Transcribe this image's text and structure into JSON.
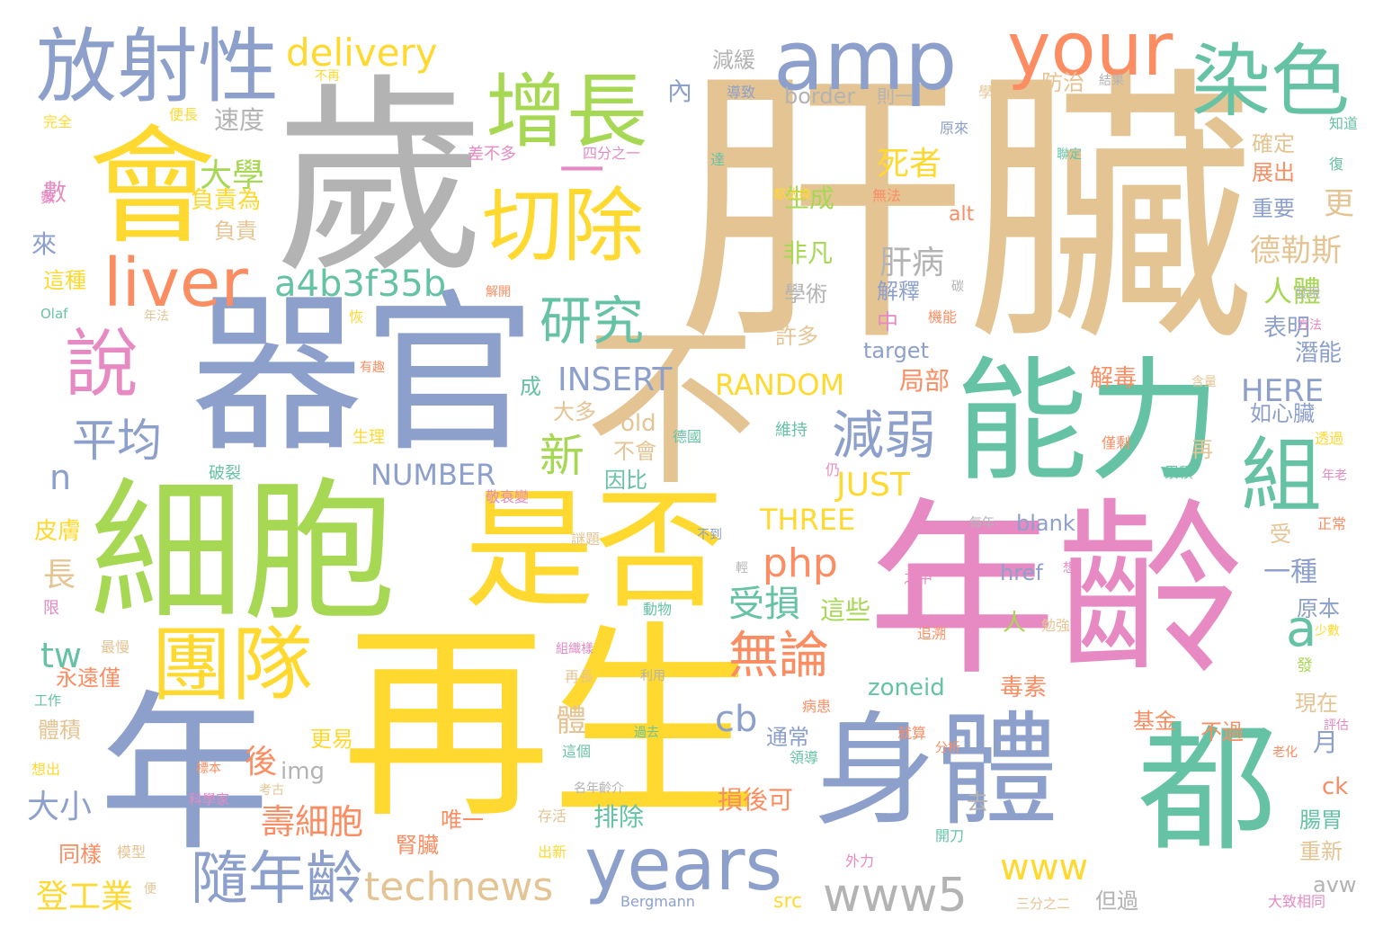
{
  "palette": {
    "tan": "#e5c494",
    "blue": "#8da0cb",
    "green": "#a6d854",
    "yellow": "#ffd92f",
    "teal": "#66c2a5",
    "orange": "#fc8d62",
    "pink": "#e78ac3",
    "gray": "#b3b3b3"
  },
  "words": [
    {
      "text": "肝臟",
      "color": "tan"
    },
    {
      "text": "歲",
      "color": "gray"
    },
    {
      "text": "器官",
      "color": "blue"
    },
    {
      "text": "細胞",
      "color": "green"
    },
    {
      "text": "再生",
      "color": "yellow"
    },
    {
      "text": "年齡",
      "color": "pink"
    },
    {
      "text": "年",
      "color": "blue"
    },
    {
      "text": "是否",
      "color": "yellow"
    },
    {
      "text": "不",
      "color": "tan"
    },
    {
      "text": "能力",
      "color": "teal"
    },
    {
      "text": "身體",
      "color": "blue"
    },
    {
      "text": "都",
      "color": "teal"
    },
    {
      "text": "會",
      "color": "yellow"
    },
    {
      "text": "amp",
      "color": "blue"
    },
    {
      "text": "your",
      "color": "orange"
    },
    {
      "text": "增長",
      "color": "green"
    },
    {
      "text": "切除",
      "color": "yellow"
    },
    {
      "text": "染色",
      "color": "teal"
    },
    {
      "text": "放射性",
      "color": "blue"
    },
    {
      "text": "liver",
      "color": "orange"
    },
    {
      "text": "說",
      "color": "pink"
    },
    {
      "text": "團隊",
      "color": "yellow"
    },
    {
      "text": "years",
      "color": "blue"
    },
    {
      "text": "組",
      "color": "teal"
    },
    {
      "text": "一",
      "color": "pink"
    },
    {
      "text": "delivery",
      "color": "yellow"
    },
    {
      "text": "研究",
      "color": "teal"
    },
    {
      "text": "a4b3f35b",
      "color": "teal"
    },
    {
      "text": "平均",
      "color": "blue"
    },
    {
      "text": "減弱",
      "color": "blue"
    },
    {
      "text": "新",
      "color": "green"
    },
    {
      "text": "無論",
      "color": "orange"
    },
    {
      "text": "隨年齡",
      "color": "blue"
    },
    {
      "text": "technews",
      "color": "tan"
    },
    {
      "text": "www5",
      "color": "gray"
    },
    {
      "text": "php",
      "color": "orange"
    },
    {
      "text": "大學",
      "color": "green"
    },
    {
      "text": "INSERT",
      "color": "blue"
    },
    {
      "text": "RANDOM",
      "color": "yellow"
    },
    {
      "text": "NUMBER",
      "color": "blue"
    },
    {
      "text": "HERE",
      "color": "blue"
    },
    {
      "text": "THREE",
      "color": "yellow"
    },
    {
      "text": "JUST",
      "color": "yellow"
    },
    {
      "text": "死者",
      "color": "yellow"
    },
    {
      "text": "肝病",
      "color": "gray"
    },
    {
      "text": "德勒斯",
      "color": "tan"
    },
    {
      "text": "人體",
      "color": "green"
    },
    {
      "text": "受損",
      "color": "teal"
    },
    {
      "text": "壽細胞",
      "color": "orange"
    },
    {
      "text": "www",
      "color": "yellow"
    },
    {
      "text": "a",
      "color": "teal"
    },
    {
      "text": "cb",
      "color": "blue"
    },
    {
      "text": "tw",
      "color": "teal"
    },
    {
      "text": "n",
      "color": "blue"
    },
    {
      "text": "生成",
      "color": "green"
    },
    {
      "text": "一種",
      "color": "blue"
    },
    {
      "text": "登工業",
      "color": "yellow"
    },
    {
      "text": "大小",
      "color": "blue"
    },
    {
      "text": "old",
      "color": "tan"
    },
    {
      "text": "後",
      "color": "orange"
    },
    {
      "text": "更",
      "color": "tan"
    },
    {
      "text": "內",
      "color": "blue"
    },
    {
      "text": "速度",
      "color": "gray"
    },
    {
      "text": "減緩",
      "color": "gray"
    },
    {
      "text": "border",
      "color": "gray"
    },
    {
      "text": "則一",
      "color": "gray"
    },
    {
      "text": "防治",
      "color": "tan"
    },
    {
      "text": "確定",
      "color": "tan"
    },
    {
      "text": "展出",
      "color": "orange"
    },
    {
      "text": "重要",
      "color": "blue"
    },
    {
      "text": "負責為",
      "color": "yellow"
    },
    {
      "text": "負責",
      "color": "tan"
    },
    {
      "text": "非凡",
      "color": "green"
    },
    {
      "text": "學術",
      "color": "gray"
    },
    {
      "text": "許多",
      "color": "tan"
    },
    {
      "text": "解釋",
      "color": "blue"
    },
    {
      "text": "中",
      "color": "pink"
    },
    {
      "text": "target",
      "color": "blue"
    },
    {
      "text": "局部",
      "color": "orange"
    },
    {
      "text": "解毒",
      "color": "orange"
    },
    {
      "text": "表明",
      "color": "blue"
    },
    {
      "text": "潛能",
      "color": "blue"
    },
    {
      "text": "如心臟",
      "color": "blue"
    },
    {
      "text": "成",
      "color": "teal"
    },
    {
      "text": "大多",
      "color": "tan"
    },
    {
      "text": "不會",
      "color": "tan"
    },
    {
      "text": "因比",
      "color": "teal"
    },
    {
      "text": "這些",
      "color": "green"
    },
    {
      "text": "人",
      "color": "green"
    },
    {
      "text": "zoneid",
      "color": "teal"
    },
    {
      "text": "毒素",
      "color": "orange"
    },
    {
      "text": "通常",
      "color": "blue"
    },
    {
      "text": "損後可",
      "color": "orange"
    },
    {
      "text": "排除",
      "color": "teal"
    },
    {
      "text": "腎臟",
      "color": "orange"
    },
    {
      "text": "唯一",
      "color": "orange"
    },
    {
      "text": "基金",
      "color": "orange"
    },
    {
      "text": "不過",
      "color": "orange"
    },
    {
      "text": "現在",
      "color": "tan"
    },
    {
      "text": "月",
      "color": "blue"
    },
    {
      "text": "原本",
      "color": "blue"
    },
    {
      "text": "blank",
      "color": "blue"
    },
    {
      "text": "href",
      "color": "blue"
    },
    {
      "text": "alt",
      "color": "orange"
    },
    {
      "text": "再",
      "color": "tan"
    },
    {
      "text": "受",
      "color": "tan"
    },
    {
      "text": "ck",
      "color": "orange"
    },
    {
      "text": "腸胃",
      "color": "teal"
    },
    {
      "text": "重新",
      "color": "tan"
    },
    {
      "text": "avw",
      "color": "gray"
    },
    {
      "text": "但過",
      "color": "gray"
    },
    {
      "text": "src",
      "color": "yellow"
    },
    {
      "text": "去",
      "color": "gray"
    },
    {
      "text": "img",
      "color": "gray"
    },
    {
      "text": "長",
      "color": "tan"
    },
    {
      "text": "皮膚",
      "color": "yellow"
    },
    {
      "text": "來",
      "color": "blue"
    },
    {
      "text": "數",
      "color": "pink"
    },
    {
      "text": "這種",
      "color": "yellow"
    },
    {
      "text": "同樣",
      "color": "orange"
    },
    {
      "text": "永遠僅",
      "color": "orange"
    },
    {
      "text": "體積",
      "color": "tan"
    },
    {
      "text": "更易",
      "color": "yellow"
    },
    {
      "text": "體",
      "color": "tan"
    },
    {
      "text": "四分之一",
      "color": "pink"
    },
    {
      "text": "差不多",
      "color": "pink"
    },
    {
      "text": "便長",
      "color": "yellow"
    },
    {
      "text": "完全",
      "color": "yellow"
    },
    {
      "text": "不再",
      "color": "yellow"
    },
    {
      "text": "導致",
      "color": "blue"
    },
    {
      "text": "學家",
      "color": "tan"
    },
    {
      "text": "結果",
      "color": "gray"
    },
    {
      "text": "原來",
      "color": "blue"
    },
    {
      "text": "知道",
      "color": "teal"
    },
    {
      "text": "達",
      "color": "teal"
    },
    {
      "text": "都汰換",
      "color": "yellow"
    },
    {
      "text": "無法",
      "color": "orange"
    },
    {
      "text": "聯定",
      "color": "teal"
    },
    {
      "text": "復",
      "color": "teal"
    },
    {
      "text": "數",
      "color": "pink"
    },
    {
      "text": "Olaf",
      "color": "teal"
    },
    {
      "text": "年法",
      "color": "tan"
    },
    {
      "text": "恢",
      "color": "yellow"
    },
    {
      "text": "解開",
      "color": "orange"
    },
    {
      "text": "機能",
      "color": "orange"
    },
    {
      "text": "發現",
      "color": "gray"
    },
    {
      "text": "方法",
      "color": "pink"
    },
    {
      "text": "有趣",
      "color": "orange"
    },
    {
      "text": "含量",
      "color": "tan"
    },
    {
      "text": "生理",
      "color": "yellow"
    },
    {
      "text": "破裂",
      "color": "teal"
    },
    {
      "text": "維持",
      "color": "teal"
    },
    {
      "text": "德國",
      "color": "teal"
    },
    {
      "text": "仍",
      "color": "pink"
    },
    {
      "text": "僅剩",
      "color": "orange"
    },
    {
      "text": "累積",
      "color": "teal"
    },
    {
      "text": "透過",
      "color": "yellow"
    },
    {
      "text": "年老",
      "color": "pink"
    },
    {
      "text": "敬衰變",
      "color": "pink"
    },
    {
      "text": "謎題",
      "color": "tan"
    },
    {
      "text": "不到",
      "color": "blue"
    },
    {
      "text": "每年",
      "color": "gray"
    },
    {
      "text": "正常",
      "color": "orange"
    },
    {
      "text": "之中",
      "color": "pink"
    },
    {
      "text": "想",
      "color": "pink"
    },
    {
      "text": "限",
      "color": "pink"
    },
    {
      "text": "動物",
      "color": "teal"
    },
    {
      "text": "最慢",
      "color": "tan"
    },
    {
      "text": "組織樣",
      "color": "pink"
    },
    {
      "text": "追溯",
      "color": "orange"
    },
    {
      "text": "勉強",
      "color": "tan"
    },
    {
      "text": "少數",
      "color": "yellow"
    },
    {
      "text": "發",
      "color": "green"
    },
    {
      "text": "工作",
      "color": "teal"
    },
    {
      "text": "再長",
      "color": "tan"
    },
    {
      "text": "利用",
      "color": "gray"
    },
    {
      "text": "病患",
      "color": "orange"
    },
    {
      "text": "評估",
      "color": "pink"
    },
    {
      "text": "老化",
      "color": "orange"
    },
    {
      "text": "分析",
      "color": "orange"
    },
    {
      "text": "過去",
      "color": "teal"
    },
    {
      "text": "這個",
      "color": "teal"
    },
    {
      "text": "領導",
      "color": "teal"
    },
    {
      "text": "就算",
      "color": "orange"
    },
    {
      "text": "想出",
      "color": "yellow"
    },
    {
      "text": "標本",
      "color": "orange"
    },
    {
      "text": "考古",
      "color": "tan"
    },
    {
      "text": "名年齡介",
      "color": "gray"
    },
    {
      "text": "科學家",
      "color": "pink"
    },
    {
      "text": "存活",
      "color": "tan"
    },
    {
      "text": "開刀",
      "color": "teal"
    },
    {
      "text": "模型",
      "color": "tan"
    },
    {
      "text": "便",
      "color": "tan"
    },
    {
      "text": "出新",
      "color": "yellow"
    },
    {
      "text": "外力",
      "color": "pink"
    },
    {
      "text": "Bergmann",
      "color": "blue"
    },
    {
      "text": "三分之二",
      "color": "tan"
    },
    {
      "text": "大致相同",
      "color": "pink"
    },
    {
      "text": "碳",
      "color": "gray"
    },
    {
      "text": "輕",
      "color": "gray"
    }
  ]
}
